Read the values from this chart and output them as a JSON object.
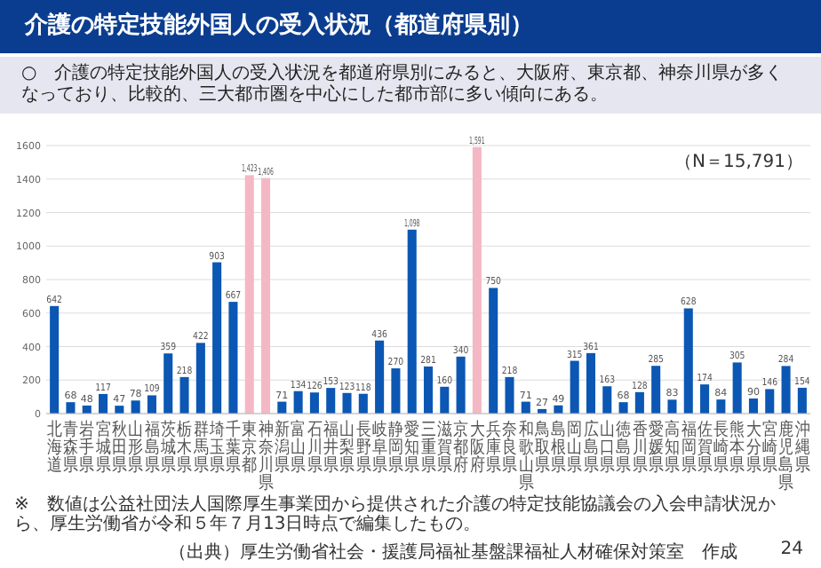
{
  "chart_data": {
    "type": "bar",
    "title": "介護の特定技能外国人の受入状況（都道府県別）",
    "subtitle": "○　介護の特定技能外国人の受入状況を都道府県別にみると、大阪府、東京都、神奈川県が多くなっており、比較的、三大都市圏を中心にした都市部に多い傾向にある。",
    "categories": [
      "北海道",
      "青森県",
      "岩手県",
      "宮城県",
      "秋田県",
      "山形県",
      "福島県",
      "茨城県",
      "栃木県",
      "群馬県",
      "埼玉県",
      "千葉県",
      "東京都",
      "神奈川県",
      "新潟県",
      "富山県",
      "石川県",
      "福井県",
      "山梨県",
      "長野県",
      "岐阜県",
      "静岡県",
      "愛知県",
      "三重県",
      "滋賀県",
      "京都府",
      "大阪府",
      "兵庫県",
      "奈良県",
      "和歌山県",
      "鳥取県",
      "島根県",
      "岡山県",
      "広島県",
      "山口県",
      "徳島県",
      "香川県",
      "愛媛県",
      "高知県",
      "福岡県",
      "佐賀県",
      "長崎県",
      "熊本県",
      "大分県",
      "宮崎県",
      "鹿児島県",
      "沖縄県"
    ],
    "values": [
      642,
      68,
      48,
      117,
      47,
      78,
      109,
      359,
      218,
      422,
      903,
      667,
      1423,
      1406,
      71,
      134,
      126,
      153,
      123,
      118,
      436,
      270,
      1098,
      281,
      160,
      340,
      1591,
      750,
      218,
      71,
      27,
      49,
      315,
      361,
      163,
      68,
      128,
      285,
      83,
      628,
      174,
      84,
      305,
      90,
      146,
      284,
      154
    ],
    "value_labels": [
      "642",
      "68",
      "48",
      "117",
      "47",
      "78",
      "109",
      "359",
      "218",
      "422",
      "903",
      "667",
      "1,423",
      "1,406",
      "71",
      "134",
      "126",
      "153",
      "123",
      "118",
      "436",
      "270",
      "1,098",
      "281",
      "160",
      "340",
      "1,591",
      "750",
      "218",
      "71",
      "27",
      "49",
      "315",
      "361",
      "163",
      "68",
      "128",
      "285",
      "83",
      "628",
      "174",
      "84",
      "305",
      "90",
      "146",
      "284",
      "154"
    ],
    "colors": [
      "#0b57b3",
      "#0b57b3",
      "#0b57b3",
      "#0b57b3",
      "#0b57b3",
      "#0b57b3",
      "#0b57b3",
      "#0b57b3",
      "#0b57b3",
      "#0b57b3",
      "#0b57b3",
      "#0b57b3",
      "#f4b8c4",
      "#f4b8c4",
      "#0b57b3",
      "#0b57b3",
      "#0b57b3",
      "#0b57b3",
      "#0b57b3",
      "#0b57b3",
      "#0b57b3",
      "#0b57b3",
      "#0b57b3",
      "#0b57b3",
      "#0b57b3",
      "#0b57b3",
      "#f4b8c4",
      "#0b57b3",
      "#0b57b3",
      "#0b57b3",
      "#0b57b3",
      "#0b57b3",
      "#0b57b3",
      "#0b57b3",
      "#0b57b3",
      "#0b57b3",
      "#0b57b3",
      "#0b57b3",
      "#0b57b3",
      "#0b57b3",
      "#0b57b3",
      "#0b57b3",
      "#0b57b3",
      "#0b57b3",
      "#0b57b3",
      "#0b57b3",
      "#0b57b3"
    ],
    "ylim": [
      0,
      1600
    ],
    "yticks": [
      0,
      200,
      400,
      600,
      800,
      1000,
      1200,
      1400,
      1600
    ],
    "grid": "y",
    "annotations": [
      "（N＝15,791）",
      "※　数値は公益社団法人国際厚生事業団から提供された介護の特定技能協議会の入会申請状況から、厚生労働省が令和５年７月13日時点で編集したもの。",
      "（出典）厚生労働省社会・援護局福祉基盤課福祉人材確保対策室　作成",
      "24"
    ]
  }
}
